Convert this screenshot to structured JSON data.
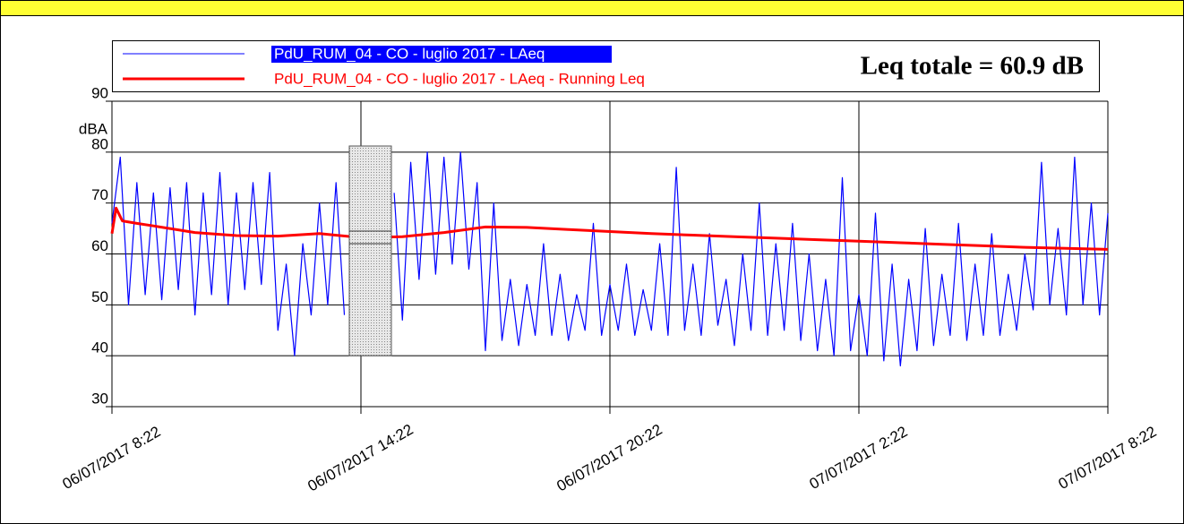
{
  "chart_data": {
    "type": "line",
    "ylabel": "dBA",
    "annotation": "Leq totale = 60.9 dB",
    "xlim": [
      0,
      24
    ],
    "xticks": [
      {
        "value": 0,
        "label": "06/07/2017 8:22"
      },
      {
        "value": 6,
        "label": "06/07/2017 14:22"
      },
      {
        "value": 12,
        "label": "06/07/2017 20:22"
      },
      {
        "value": 18,
        "label": "07/07/2017 2:22"
      },
      {
        "value": 24,
        "label": "07/07/2017 8:22"
      }
    ],
    "ylim": [
      30,
      90
    ],
    "yticks": [
      30,
      40,
      50,
      60,
      70,
      80,
      90
    ],
    "grid": true,
    "series": [
      {
        "name": "PdU_RUM_04 - CO - luglio 2017 - LAeq",
        "color": "#0000ff",
        "x": [
          0,
          0.2,
          0.4,
          0.6,
          0.8,
          1,
          1.2,
          1.4,
          1.6,
          1.8,
          2,
          2.2,
          2.4,
          2.6,
          2.8,
          3,
          3.2,
          3.4,
          3.6,
          3.8,
          4,
          4.2,
          4.4,
          4.6,
          4.8,
          5,
          5.2,
          5.4,
          5.6,
          5.8,
          6,
          6.2,
          6.4,
          6.6,
          6.8,
          7,
          7.2,
          7.4,
          7.6,
          7.8,
          8,
          8.2,
          8.4,
          8.6,
          8.8,
          9,
          9.2,
          9.4,
          9.6,
          9.8,
          10,
          10.2,
          10.4,
          10.6,
          10.8,
          11,
          11.2,
          11.4,
          11.6,
          11.8,
          12,
          12.2,
          12.4,
          12.6,
          12.8,
          13,
          13.2,
          13.4,
          13.6,
          13.8,
          14,
          14.2,
          14.4,
          14.6,
          14.8,
          15,
          15.2,
          15.4,
          15.6,
          15.8,
          16,
          16.2,
          16.4,
          16.6,
          16.8,
          17,
          17.2,
          17.4,
          17.6,
          17.8,
          18,
          18.2,
          18.4,
          18.6,
          18.8,
          19,
          19.2,
          19.4,
          19.6,
          19.8,
          20,
          20.2,
          20.4,
          20.6,
          20.8,
          21,
          21.2,
          21.4,
          21.6,
          21.8,
          22,
          22.2,
          22.4,
          22.6,
          22.8,
          23,
          23.2,
          23.4,
          23.6,
          23.8,
          24
        ],
        "values": [
          66,
          79,
          50,
          74,
          52,
          72,
          51,
          73,
          53,
          74,
          48,
          72,
          52,
          76,
          50,
          72,
          53,
          74,
          54,
          76,
          45,
          58,
          40,
          62,
          48,
          70,
          50,
          74,
          48,
          null,
          null,
          null,
          null,
          null,
          72,
          47,
          78,
          55,
          80,
          56,
          79,
          58,
          80,
          57,
          74,
          41,
          70,
          43,
          55,
          42,
          54,
          44,
          62,
          44,
          56,
          43,
          52,
          45,
          66,
          44,
          54,
          45,
          58,
          44,
          53,
          45,
          62,
          44,
          77,
          45,
          58,
          44,
          64,
          46,
          55,
          42,
          60,
          45,
          70,
          44,
          62,
          45,
          66,
          43,
          60,
          41,
          55,
          40,
          75,
          41,
          52,
          40,
          68,
          39,
          58,
          38,
          55,
          41,
          65,
          42,
          56,
          44,
          66,
          43,
          58,
          44,
          64,
          44,
          56,
          45,
          60,
          49,
          78,
          50,
          65,
          48,
          79,
          50,
          70,
          48,
          68
        ]
      },
      {
        "name": "PdU_RUM_04 - CO - luglio 2017 - LAeq - Running Leq",
        "color": "#ff0000",
        "x": [
          0,
          0.1,
          0.25,
          0.6,
          1,
          2,
          3,
          4,
          5,
          6,
          7,
          8,
          9,
          10,
          11,
          12,
          13,
          14,
          15,
          16,
          17,
          18,
          19,
          20,
          21,
          22,
          23,
          24
        ],
        "values": [
          64,
          69,
          66.5,
          66,
          65.5,
          64.2,
          63.6,
          63.5,
          64,
          63.2,
          63.4,
          64.2,
          65.3,
          65.2,
          64.8,
          64.4,
          64,
          63.7,
          63.4,
          63.1,
          62.8,
          62.5,
          62.2,
          61.9,
          61.6,
          61.3,
          61.1,
          60.9
        ]
      }
    ]
  }
}
